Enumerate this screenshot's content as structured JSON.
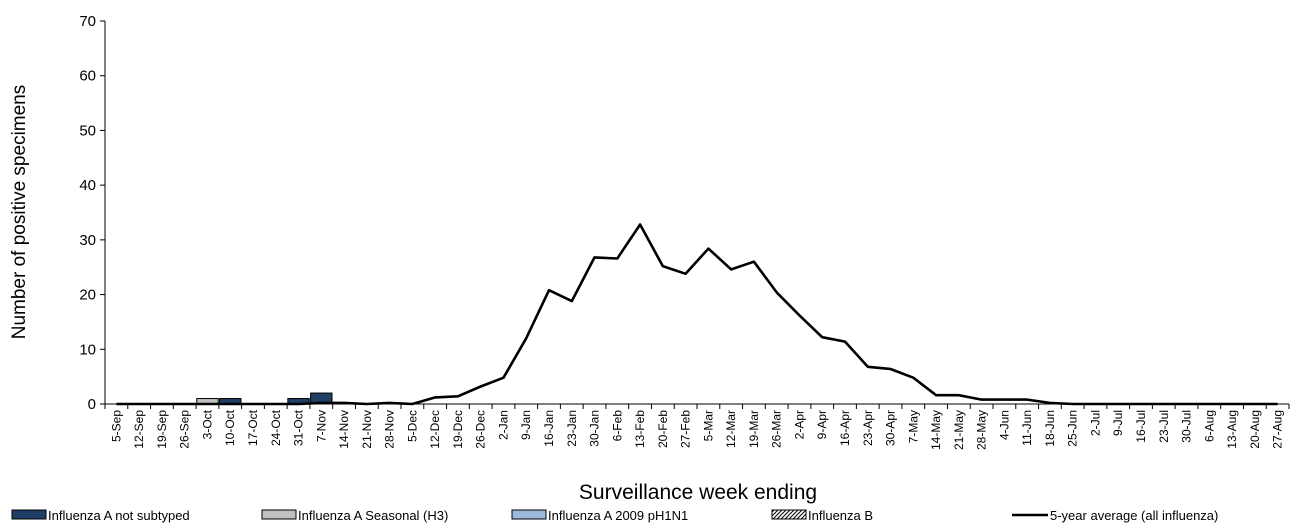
{
  "chart_data": {
    "type": "bar",
    "title": "",
    "xlabel": "Surveillance week ending",
    "ylabel": "Number of positive specimens",
    "ylim": [
      0,
      70
    ],
    "yticks": [
      0,
      10,
      20,
      30,
      40,
      50,
      60,
      70
    ],
    "grid": false,
    "legend_position": "bottom",
    "categories": [
      "5-Sep",
      "12-Sep",
      "19-Sep",
      "26-Sep",
      "3-Oct",
      "10-Oct",
      "17-Oct",
      "24-Oct",
      "31-Oct",
      "7-Nov",
      "14-Nov",
      "21-Nov",
      "28-Nov",
      "5-Dec",
      "12-Dec",
      "19-Dec",
      "26-Dec",
      "2-Jan",
      "9-Jan",
      "16-Jan",
      "23-Jan",
      "30-Jan",
      "6-Feb",
      "13-Feb",
      "20-Feb",
      "27-Feb",
      "5-Mar",
      "12-Mar",
      "19-Mar",
      "26-Mar",
      "2-Apr",
      "9-Apr",
      "16-Apr",
      "23-Apr",
      "30-Apr",
      "7-May",
      "14-May",
      "21-May",
      "28-May",
      "4-Jun",
      "11-Jun",
      "18-Jun",
      "25-Jun",
      "2-Jul",
      "9-Jul",
      "16-Jul",
      "23-Jul",
      "30-Jul",
      "6-Aug",
      "13-Aug",
      "20-Aug",
      "27-Aug"
    ],
    "series": [
      {
        "name": "Influenza A not subtyped",
        "kind": "bar",
        "color": "#1f3f66",
        "values": [
          0,
          0,
          0,
          0,
          0,
          1,
          0,
          0,
          1,
          2,
          0,
          0,
          0,
          0,
          0,
          0,
          0,
          0,
          0,
          0,
          0,
          0,
          0,
          0,
          0,
          0,
          0,
          0,
          0,
          0,
          0,
          0,
          0,
          0,
          0,
          0,
          0,
          0,
          0,
          0,
          0,
          0,
          0,
          0,
          0,
          0,
          0,
          0,
          0,
          0,
          0,
          0
        ]
      },
      {
        "name": "Influenza A Seasonal (H3)",
        "kind": "bar",
        "color": "#c0c0c0",
        "values": [
          0,
          0,
          0,
          0,
          1,
          0,
          0,
          0,
          0,
          0,
          0,
          0,
          0,
          0,
          0,
          0,
          0,
          0,
          0,
          0,
          0,
          0,
          0,
          0,
          0,
          0,
          0,
          0,
          0,
          0,
          0,
          0,
          0,
          0,
          0,
          0,
          0,
          0,
          0,
          0,
          0,
          0,
          0,
          0,
          0,
          0,
          0,
          0,
          0,
          0,
          0,
          0
        ]
      },
      {
        "name": "Influenza A 2009 pH1N1",
        "kind": "bar",
        "color": "#9db9de",
        "values": [
          0,
          0,
          0,
          0,
          0,
          0,
          0,
          0,
          0,
          0,
          0,
          0,
          0,
          0,
          0,
          0,
          0,
          0,
          0,
          0,
          0,
          0,
          0,
          0,
          0,
          0,
          0,
          0,
          0,
          0,
          0,
          0,
          0,
          0,
          0,
          0,
          0,
          0,
          0,
          0,
          0,
          0,
          0,
          0,
          0,
          0,
          0,
          0,
          0,
          0,
          0,
          0
        ]
      },
      {
        "name": "Influenza B",
        "kind": "bar",
        "color": "#ffffff",
        "pattern": "hatch",
        "values": [
          0,
          0,
          0,
          0,
          0,
          0,
          0,
          0,
          0,
          0,
          0,
          0,
          0,
          0,
          0,
          0,
          0,
          0,
          0,
          0,
          0,
          0,
          0,
          0,
          0,
          0,
          0,
          0,
          0,
          0,
          0,
          0,
          0,
          0,
          0,
          0,
          0,
          0,
          0,
          0,
          0,
          0,
          0,
          0,
          0,
          0,
          0,
          0,
          0,
          0,
          0,
          0
        ]
      },
      {
        "name": "5-year average (all influenza)",
        "kind": "line",
        "color": "#000000",
        "values": [
          0,
          0,
          0,
          0,
          0,
          0,
          0,
          0,
          0,
          0.2,
          0.2,
          0,
          0.2,
          0,
          1.2,
          1.4,
          3.2,
          4.8,
          12,
          20.8,
          18.8,
          26.8,
          26.6,
          32.8,
          25.2,
          23.8,
          28.4,
          24.6,
          26,
          20.4,
          16.2,
          12.2,
          11.4,
          6.8,
          6.4,
          4.8,
          1.6,
          1.6,
          0.8,
          0.8,
          0.8,
          0.2,
          0,
          0,
          0,
          0,
          0,
          0,
          0,
          0,
          0,
          0
        ]
      }
    ]
  }
}
